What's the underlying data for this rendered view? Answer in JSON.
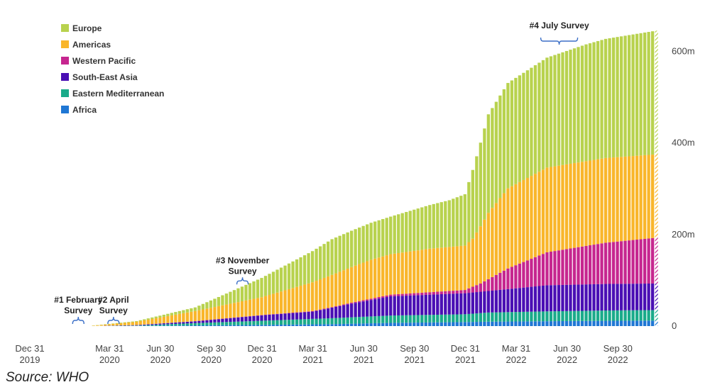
{
  "chart_data": {
    "type": "bar",
    "stacked": true,
    "ylim": [
      0,
      650000000
    ],
    "y_ticks": [
      {
        "value": 0,
        "label": "0"
      },
      {
        "value": 200000000,
        "label": "200m"
      },
      {
        "value": 400000000,
        "label": "400m"
      },
      {
        "value": 600000000,
        "label": "600m"
      }
    ],
    "x_ticks": [
      {
        "index": 0,
        "line1": "Dec 31",
        "line2": "2019"
      },
      {
        "index": 13,
        "line1": "Mar 31",
        "line2": "2020"
      },
      {
        "index": 26,
        "line1": "Jun 30",
        "line2": "2020"
      },
      {
        "index": 39,
        "line1": "Sep 30",
        "line2": "2020"
      },
      {
        "index": 52,
        "line1": "Dec 31",
        "line2": "2020"
      },
      {
        "index": 65,
        "line1": "Mar 31",
        "line2": "2021"
      },
      {
        "index": 78,
        "line1": "Jun 30",
        "line2": "2021"
      },
      {
        "index": 91,
        "line1": "Sep 30",
        "line2": "2021"
      },
      {
        "index": 104,
        "line1": "Dec 31",
        "line2": "2021"
      },
      {
        "index": 117,
        "line1": "Mar 31",
        "line2": "2022"
      },
      {
        "index": 130,
        "line1": "Jun 30",
        "line2": "2022"
      },
      {
        "index": 143,
        "line1": "Sep 30",
        "line2": "2022"
      }
    ],
    "bar_count": 154,
    "time_unit": "week",
    "legend_position": "top-left",
    "grid": false,
    "series": [
      {
        "name": "Africa",
        "color": "#1f77d4",
        "key_weeks": [
          0,
          8,
          20,
          35,
          52,
          70,
          85,
          104,
          110,
          125,
          140,
          153
        ],
        "key_values": [
          0,
          0,
          0.3,
          1.5,
          2.6,
          4.2,
          7.0,
          8.8,
          9.6,
          10.6,
          11.5,
          12.0
        ]
      },
      {
        "name": "Eastern Mediterranean",
        "color": "#1aab8a",
        "key_weeks": [
          0,
          8,
          20,
          35,
          52,
          70,
          85,
          104,
          110,
          125,
          140,
          153
        ],
        "key_values": [
          0,
          0,
          0.8,
          5.0,
          9.0,
          13.0,
          16.0,
          17.0,
          20.0,
          21.5,
          22.5,
          23.0
        ]
      },
      {
        "name": "South-East Asia",
        "color": "#4a0fb4",
        "key_weeks": [
          0,
          8,
          20,
          35,
          52,
          65,
          75,
          85,
          104,
          110,
          125,
          140,
          153
        ],
        "key_values": [
          0,
          0,
          1.0,
          4.0,
          12.0,
          16.0,
          30.0,
          42.0,
          46.0,
          47.0,
          57.0,
          58.0,
          58.0
        ]
      },
      {
        "name": "Western Pacific",
        "color": "#c6268f",
        "key_weeks": [
          0,
          10,
          35,
          52,
          70,
          90,
          104,
          108,
          115,
          125,
          140,
          153
        ],
        "key_values": [
          0,
          0.1,
          0.3,
          0.5,
          1.2,
          4.5,
          7.0,
          18.0,
          45.0,
          72.0,
          90.0,
          100.0
        ]
      },
      {
        "name": "Americas",
        "color": "#f9b62b",
        "key_weeks": [
          0,
          8,
          20,
          35,
          52,
          65,
          80,
          95,
          104,
          106,
          110,
          115,
          125,
          140,
          153
        ],
        "key_values": [
          0,
          0.2,
          7.0,
          22.0,
          39.0,
          63.0,
          85.0,
          95.0,
          97.0,
          105.0,
          145.0,
          175.0,
          185.0,
          185.0,
          182.0
        ]
      },
      {
        "name": "Europe",
        "color": "#b8d24e",
        "key_weeks": [
          0,
          8,
          20,
          35,
          52,
          70,
          85,
          100,
          104,
          106,
          110,
          115,
          125,
          135,
          140,
          153
        ],
        "key_values": [
          0,
          0.3,
          1.5,
          8.0,
          42.0,
          78.0,
          82.0,
          102.0,
          112.0,
          150.0,
          215.0,
          230.0,
          240.0,
          255.0,
          260.0,
          270.0
        ]
      }
    ],
    "annotations": [
      {
        "lines": [
          "#1 February",
          "Survey"
        ],
        "week": 5
      },
      {
        "lines": [
          "#2 April",
          "Survey"
        ],
        "week": 14
      },
      {
        "lines": [
          "#3 November",
          "Survey"
        ],
        "week": 47
      },
      {
        "lines": [
          "#4 July  Survey"
        ],
        "week": 128
      }
    ]
  },
  "source_text": "Source: WHO"
}
